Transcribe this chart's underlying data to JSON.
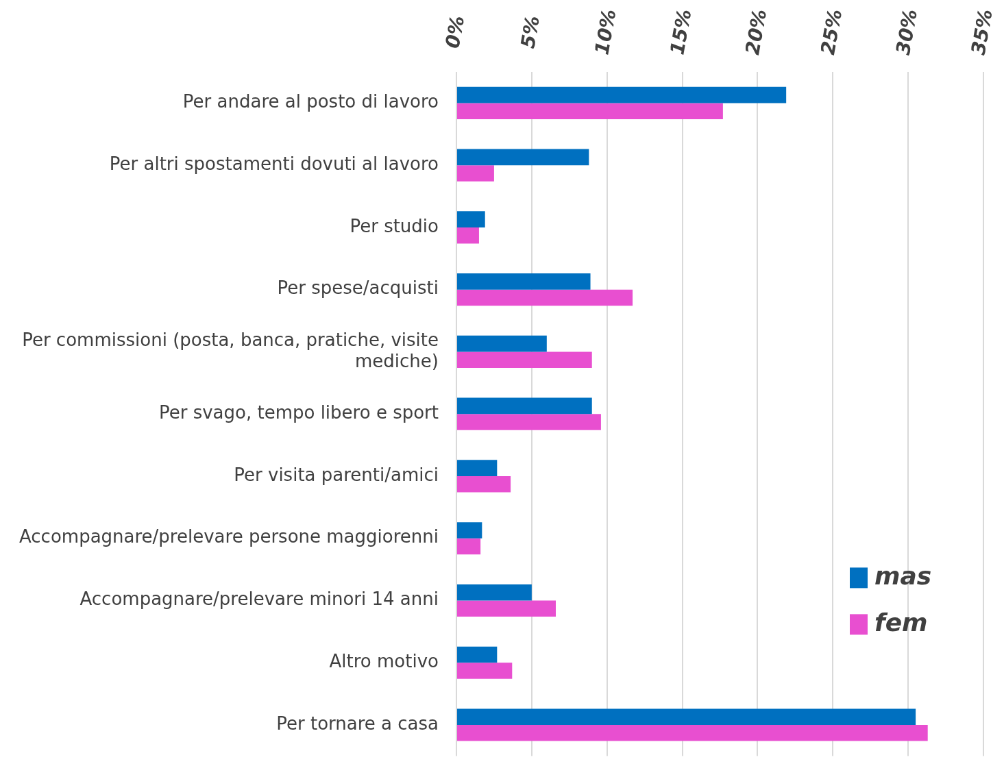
{
  "chart_data": {
    "type": "bar",
    "orientation": "horizontal",
    "categories": [
      "Per andare al posto di lavoro",
      "Per altri spostamenti dovuti al lavoro",
      "Per studio",
      "Per spese/acquisti",
      "Per commissioni (posta, banca, pratiche, visite mediche)",
      "Per svago, tempo libero e sport",
      "Per visita parenti/amici",
      "Accompagnare/prelevare persone maggiorenni",
      "Accompagnare/prelevare minori 14 anni",
      "Altro motivo",
      "Per tornare a casa"
    ],
    "series": [
      {
        "name": "mas",
        "color": "#0070c0",
        "values": [
          21.9,
          8.8,
          1.9,
          8.9,
          6.0,
          9.0,
          2.7,
          1.7,
          5.0,
          2.7,
          30.5
        ]
      },
      {
        "name": "fem",
        "color": "#e84fd0",
        "values": [
          17.7,
          2.5,
          1.5,
          11.7,
          9.0,
          9.6,
          3.6,
          1.6,
          6.6,
          3.7,
          31.3
        ]
      }
    ],
    "xlim": [
      0,
      35
    ],
    "xticks": [
      {
        "value": 0,
        "label": "0%"
      },
      {
        "value": 5,
        "label": "5%"
      },
      {
        "value": 10,
        "label": "10%"
      },
      {
        "value": 15,
        "label": "15%"
      },
      {
        "value": 20,
        "label": "20%"
      },
      {
        "value": 25,
        "label": "25%"
      },
      {
        "value": 30,
        "label": "30%"
      },
      {
        "value": 35,
        "label": "35%"
      }
    ],
    "grid": "x",
    "legend": "bottom right"
  }
}
